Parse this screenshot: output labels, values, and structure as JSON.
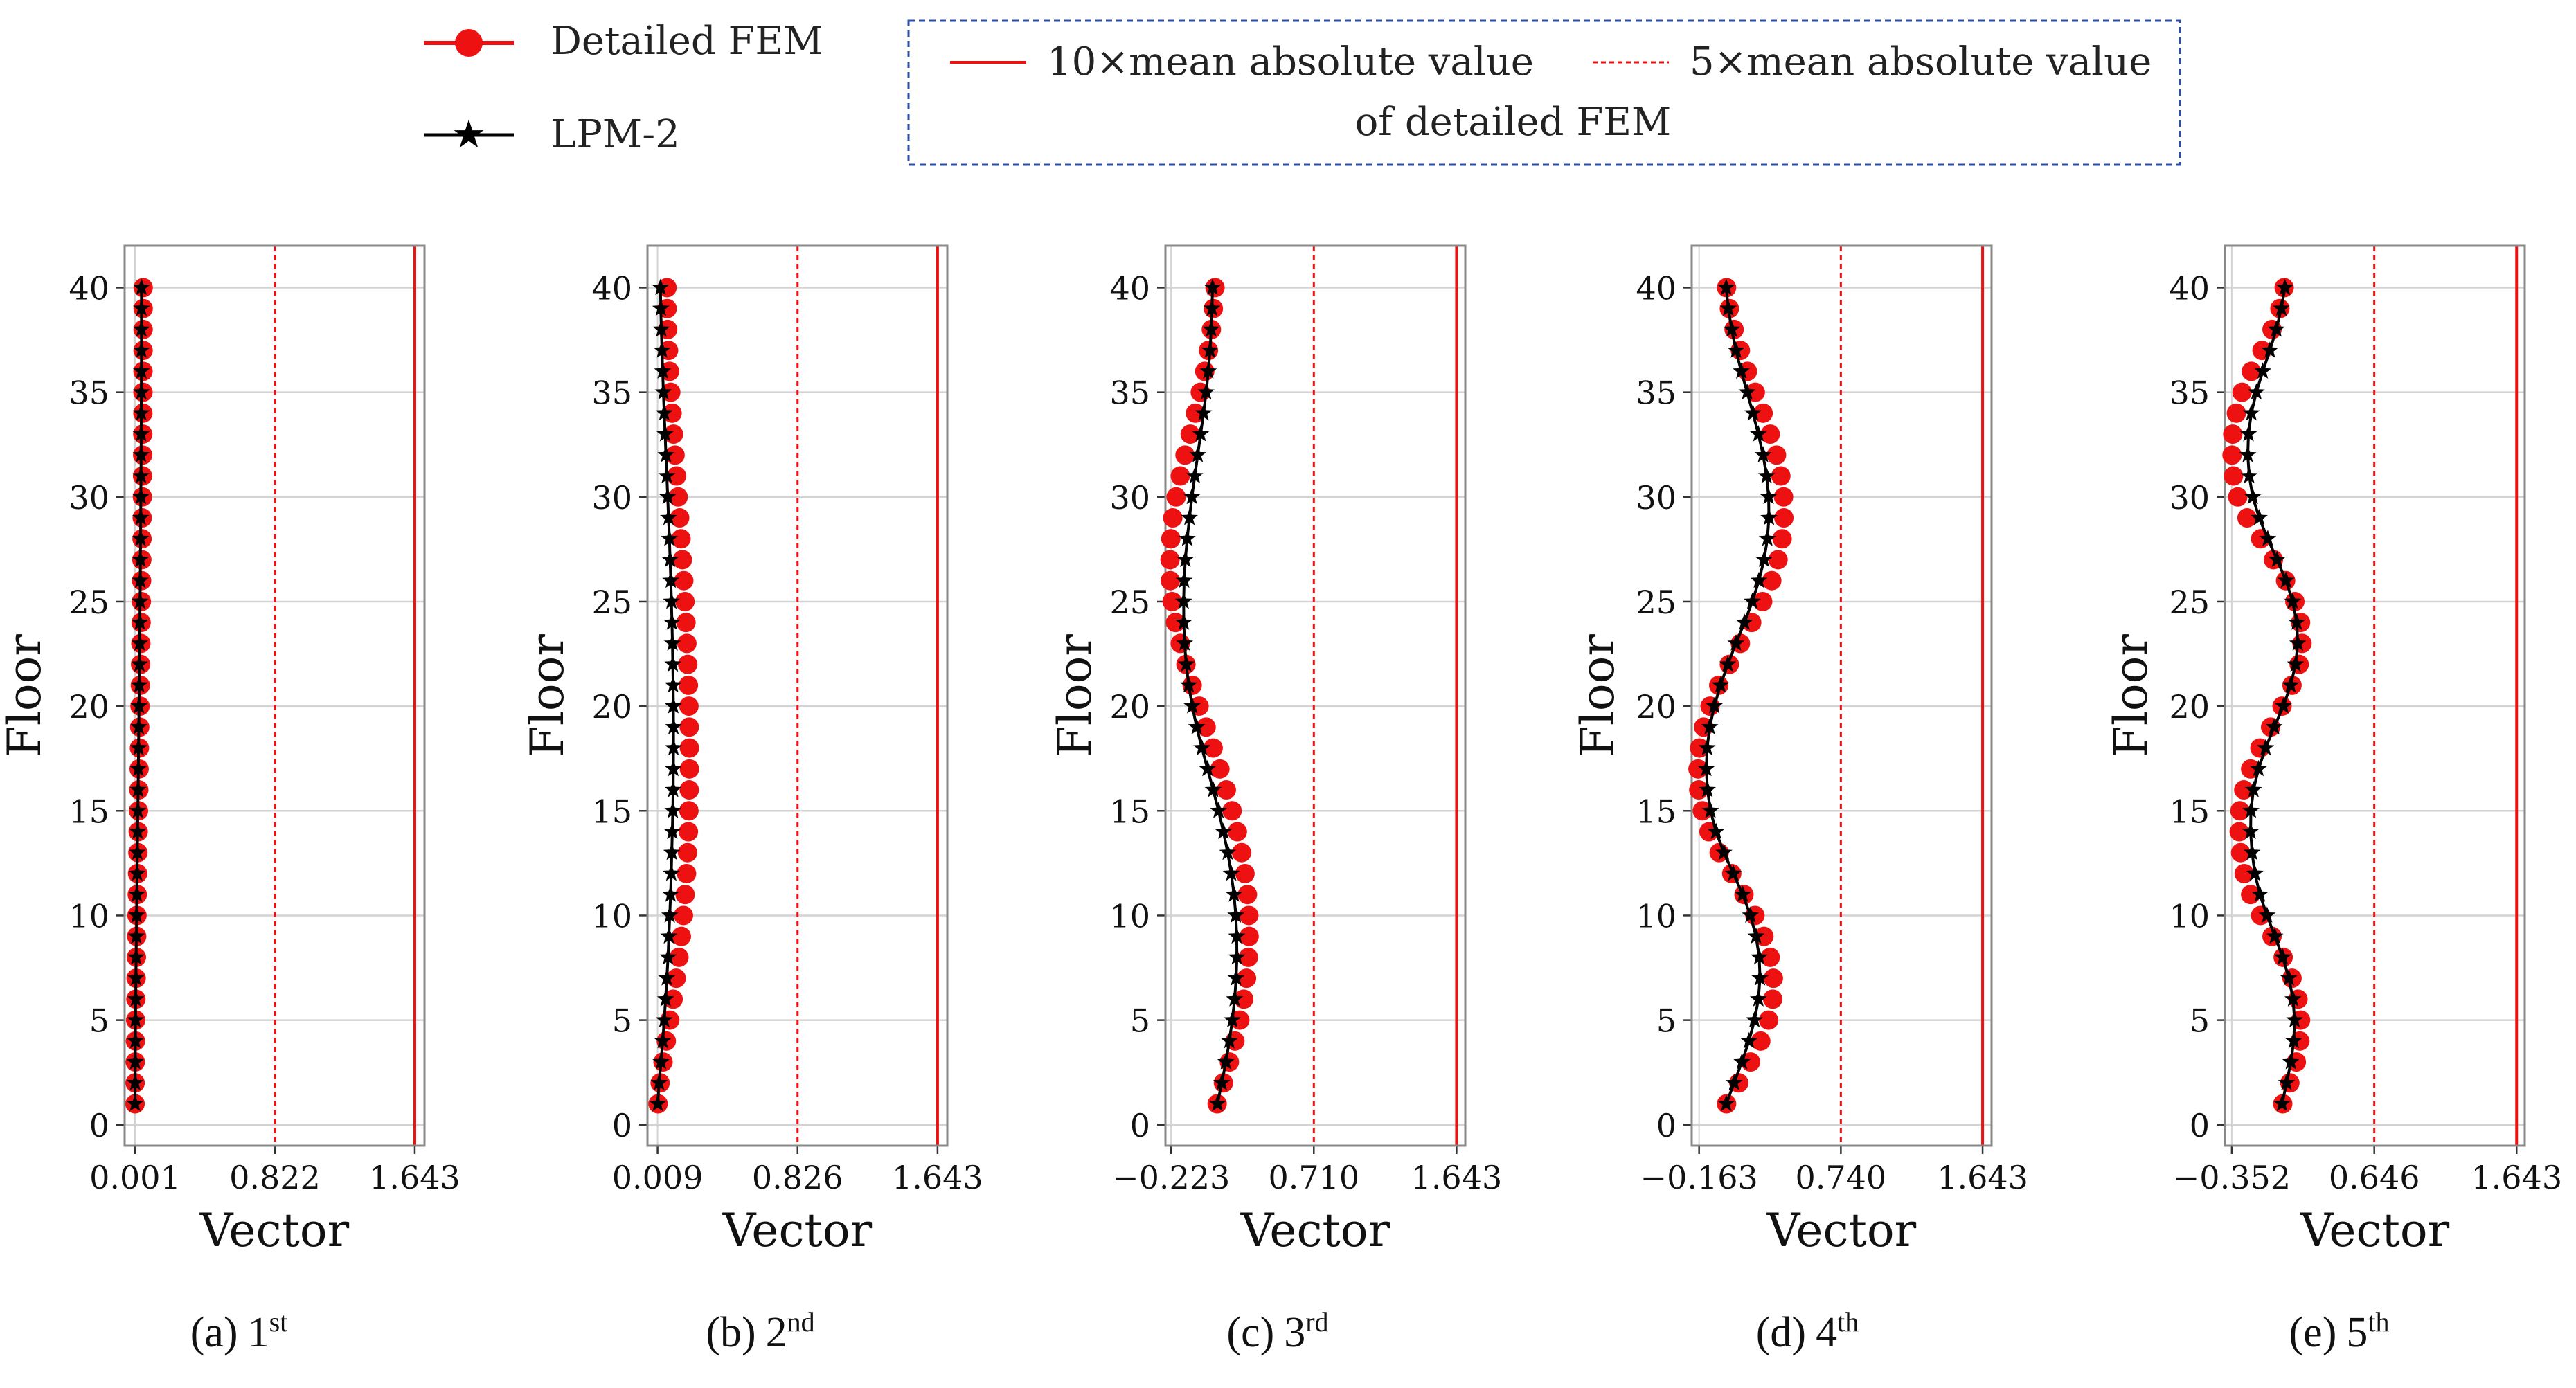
{
  "legend": {
    "fem_label": "Detailed FEM",
    "lpm_label": "LPM-2",
    "line10_label": "10×mean absolute value",
    "line5_label": "5×mean absolute value",
    "line_of_label": "of detailed FEM"
  },
  "colors": {
    "fem": "#ee1111",
    "lpm": "#000000",
    "ref_line": "#ee1111",
    "legend_box_border": "#2b4ea8",
    "grid": "#d3d3d3",
    "frame": "#888888"
  },
  "chart_data": [
    {
      "type": "line",
      "panel": "a",
      "caption_letter": "(a)",
      "caption_ordinal": "1",
      "caption_suffix": "st",
      "xlabel": "Vector",
      "ylabel": "Floor",
      "xticks": [
        "0.001",
        "0.822",
        "1.643"
      ],
      "xtick_values": [
        0.001,
        0.822,
        1.643
      ],
      "xlim": [
        -0.06,
        1.7
      ],
      "yticks": [
        "0",
        "5",
        "10",
        "15",
        "20",
        "25",
        "30",
        "35",
        "40"
      ],
      "ylim": [
        -1,
        42
      ],
      "ref_lines": {
        "solid": 1.643,
        "dashed": 0.822
      },
      "grid": "horizontal",
      "series": [
        {
          "name": "Detailed FEM",
          "floors": [
            1,
            40
          ],
          "values": [
            0.0013,
            0.0018,
            0.0026,
            0.0036,
            0.0048,
            0.0062,
            0.0076,
            0.0092,
            0.0108,
            0.0125,
            0.0143,
            0.0161,
            0.0179,
            0.0197,
            0.0215,
            0.0233,
            0.0251,
            0.0269,
            0.0287,
            0.0304,
            0.0321,
            0.0337,
            0.0353,
            0.0368,
            0.0382,
            0.0396,
            0.0409,
            0.0421,
            0.0432,
            0.0442,
            0.0451,
            0.0459,
            0.0466,
            0.0472,
            0.0477,
            0.0481,
            0.0484,
            0.0486,
            0.0488,
            0.0489
          ]
        },
        {
          "name": "LPM-2",
          "floors": [
            1,
            40
          ],
          "values": [
            0.0012,
            0.0016,
            0.0022,
            0.003,
            0.004,
            0.0051,
            0.0063,
            0.0076,
            0.009,
            0.0104,
            0.0118,
            0.0133,
            0.0147,
            0.0162,
            0.0176,
            0.0191,
            0.0205,
            0.0219,
            0.0233,
            0.0246,
            0.0259,
            0.0272,
            0.0284,
            0.0296,
            0.0307,
            0.0317,
            0.0327,
            0.0336,
            0.0345,
            0.0353,
            0.036,
            0.0366,
            0.0371,
            0.0376,
            0.038,
            0.0383,
            0.0386,
            0.0387,
            0.0388,
            0.0389
          ]
        }
      ]
    },
    {
      "type": "line",
      "panel": "b",
      "caption_letter": "(b)",
      "caption_ordinal": "2",
      "caption_suffix": "nd",
      "xlabel": "Vector",
      "ylabel": "Floor",
      "xticks": [
        "0.009",
        "0.826",
        "1.643"
      ],
      "xtick_values": [
        0.009,
        0.826,
        1.643
      ],
      "xlim": [
        -0.05,
        1.7
      ],
      "yticks": [
        "0",
        "5",
        "10",
        "15",
        "20",
        "25",
        "30",
        "35",
        "40"
      ],
      "ylim": [
        -1,
        42
      ],
      "ref_lines": {
        "solid": 1.643,
        "dashed": 0.826
      },
      "grid": "horizontal",
      "series": [
        {
          "name": "Detailed FEM",
          "floors": [
            1,
            40
          ],
          "values": [
            0.012,
            0.024,
            0.041,
            0.06,
            0.08,
            0.1,
            0.118,
            0.134,
            0.148,
            0.16,
            0.17,
            0.178,
            0.184,
            0.189,
            0.192,
            0.194,
            0.195,
            0.195,
            0.194,
            0.192,
            0.189,
            0.185,
            0.18,
            0.175,
            0.169,
            0.162,
            0.154,
            0.146,
            0.138,
            0.129,
            0.12,
            0.111,
            0.102,
            0.094,
            0.086,
            0.079,
            0.073,
            0.068,
            0.065,
            0.064
          ]
        },
        {
          "name": "LPM-2",
          "floors": [
            1,
            40
          ],
          "values": [
            0.01,
            0.018,
            0.029,
            0.039,
            0.048,
            0.056,
            0.063,
            0.07,
            0.075,
            0.08,
            0.085,
            0.089,
            0.092,
            0.095,
            0.098,
            0.1,
            0.101,
            0.102,
            0.102,
            0.101,
            0.1,
            0.098,
            0.096,
            0.093,
            0.09,
            0.086,
            0.082,
            0.078,
            0.073,
            0.068,
            0.063,
            0.058,
            0.053,
            0.048,
            0.043,
            0.039,
            0.035,
            0.031,
            0.028,
            0.026
          ]
        }
      ]
    },
    {
      "type": "line",
      "panel": "c",
      "caption_letter": "(c)",
      "caption_ordinal": "3",
      "caption_suffix": "rd",
      "xlabel": "Vector",
      "ylabel": "Floor",
      "xticks": [
        "−0.223",
        "0.710",
        "1.643"
      ],
      "xtick_values": [
        -0.223,
        0.71,
        1.643
      ],
      "xlim": [
        -0.26,
        1.7
      ],
      "yticks": [
        "0",
        "5",
        "10",
        "15",
        "20",
        "25",
        "30",
        "35",
        "40"
      ],
      "ylim": [
        -1,
        42
      ],
      "ref_lines": {
        "solid": 1.643,
        "dashed": 0.71
      },
      "grid": "horizontal",
      "series": [
        {
          "name": "Detailed FEM",
          "floors": [
            1,
            40
          ],
          "values": [
            0.078,
            0.119,
            0.158,
            0.194,
            0.226,
            0.252,
            0.27,
            0.282,
            0.287,
            0.285,
            0.276,
            0.26,
            0.238,
            0.21,
            0.176,
            0.138,
            0.096,
            0.052,
            0.006,
            -0.04,
            -0.085,
            -0.126,
            -0.163,
            -0.194,
            -0.216,
            -0.228,
            -0.23,
            -0.225,
            -0.212,
            -0.19,
            -0.163,
            -0.132,
            -0.098,
            -0.064,
            -0.032,
            -0.003,
            0.021,
            0.04,
            0.053,
            0.064
          ]
        },
        {
          "name": "LPM-2",
          "floors": [
            1,
            40
          ],
          "values": [
            0.08,
            0.108,
            0.135,
            0.158,
            0.177,
            0.192,
            0.202,
            0.207,
            0.206,
            0.2,
            0.188,
            0.17,
            0.147,
            0.119,
            0.087,
            0.052,
            0.015,
            -0.022,
            -0.056,
            -0.085,
            -0.108,
            -0.124,
            -0.135,
            -0.14,
            -0.141,
            -0.138,
            -0.13,
            -0.118,
            -0.103,
            -0.087,
            -0.068,
            -0.049,
            -0.03,
            -0.011,
            0.006,
            0.02,
            0.031,
            0.039,
            0.044,
            0.048
          ]
        }
      ]
    },
    {
      "type": "line",
      "panel": "d",
      "caption_letter": "(d)",
      "caption_ordinal": "4",
      "caption_suffix": "th",
      "xlabel": "Vector",
      "ylabel": "Floor",
      "xticks": [
        "−0.163",
        "0.740",
        "1.643"
      ],
      "xtick_values": [
        -0.163,
        0.74,
        1.643
      ],
      "xlim": [
        -0.21,
        1.7
      ],
      "yticks": [
        "0",
        "5",
        "10",
        "15",
        "20",
        "25",
        "30",
        "35",
        "40"
      ],
      "ylim": [
        -1,
        42
      ],
      "ref_lines": {
        "solid": 1.643,
        "dashed": 0.74
      },
      "grid": "horizontal",
      "series": [
        {
          "name": "Detailed FEM",
          "floors": [
            1,
            40
          ],
          "values": [
            0.012,
            0.09,
            0.165,
            0.23,
            0.28,
            0.306,
            0.31,
            0.29,
            0.25,
            0.193,
            0.123,
            0.045,
            -0.035,
            -0.1,
            -0.142,
            -0.165,
            -0.17,
            -0.16,
            -0.134,
            -0.093,
            -0.038,
            0.03,
            0.1,
            0.172,
            0.242,
            0.3,
            0.34,
            0.366,
            0.377,
            0.375,
            0.358,
            0.33,
            0.29,
            0.245,
            0.195,
            0.145,
            0.1,
            0.06,
            0.03,
            0.012
          ]
        },
        {
          "name": "LPM-2",
          "floors": [
            1,
            40
          ],
          "values": [
            0.01,
            0.06,
            0.11,
            0.155,
            0.19,
            0.215,
            0.225,
            0.22,
            0.2,
            0.164,
            0.115,
            0.055,
            -0.005,
            -0.055,
            -0.09,
            -0.11,
            -0.117,
            -0.112,
            -0.095,
            -0.066,
            -0.027,
            0.02,
            0.072,
            0.126,
            0.176,
            0.218,
            0.251,
            0.272,
            0.282,
            0.28,
            0.267,
            0.245,
            0.215,
            0.18,
            0.143,
            0.106,
            0.072,
            0.045,
            0.023,
            0.01
          ]
        }
      ]
    },
    {
      "type": "line",
      "panel": "e",
      "caption_letter": "(e)",
      "caption_ordinal": "5",
      "caption_suffix": "th",
      "xlabel": "Vector",
      "ylabel": "Floor",
      "xticks": [
        "−0.352",
        "0.646",
        "1.643"
      ],
      "xtick_values": [
        -0.352,
        0.646,
        1.643
      ],
      "xlim": [
        -0.4,
        1.7
      ],
      "yticks": [
        "0",
        "5",
        "10",
        "15",
        "20",
        "25",
        "30",
        "35",
        "40"
      ],
      "ylim": [
        -1,
        42
      ],
      "ref_lines": {
        "solid": 1.643,
        "dashed": 0.646
      },
      "grid": "horizontal",
      "series": [
        {
          "name": "Detailed FEM",
          "floors": [
            1,
            40
          ],
          "values": [
            0.005,
            0.055,
            0.1,
            0.125,
            0.13,
            0.112,
            0.07,
            0.008,
            -0.07,
            -0.15,
            -0.22,
            -0.265,
            -0.29,
            -0.3,
            -0.295,
            -0.268,
            -0.22,
            -0.155,
            -0.08,
            0.0,
            0.07,
            0.12,
            0.14,
            0.13,
            0.09,
            0.025,
            -0.06,
            -0.15,
            -0.245,
            -0.31,
            -0.34,
            -0.35,
            -0.345,
            -0.32,
            -0.28,
            -0.215,
            -0.14,
            -0.07,
            -0.015,
            0.015
          ]
        },
        {
          "name": "LPM-2",
          "floors": [
            1,
            40
          ],
          "values": [
            0.0,
            0.032,
            0.062,
            0.082,
            0.088,
            0.077,
            0.048,
            0.005,
            -0.05,
            -0.105,
            -0.155,
            -0.19,
            -0.21,
            -0.22,
            -0.218,
            -0.2,
            -0.165,
            -0.115,
            -0.055,
            0.01,
            0.06,
            0.095,
            0.11,
            0.103,
            0.075,
            0.028,
            -0.035,
            -0.1,
            -0.16,
            -0.205,
            -0.23,
            -0.24,
            -0.235,
            -0.215,
            -0.18,
            -0.135,
            -0.085,
            -0.04,
            -0.005,
            0.02
          ]
        }
      ]
    }
  ]
}
